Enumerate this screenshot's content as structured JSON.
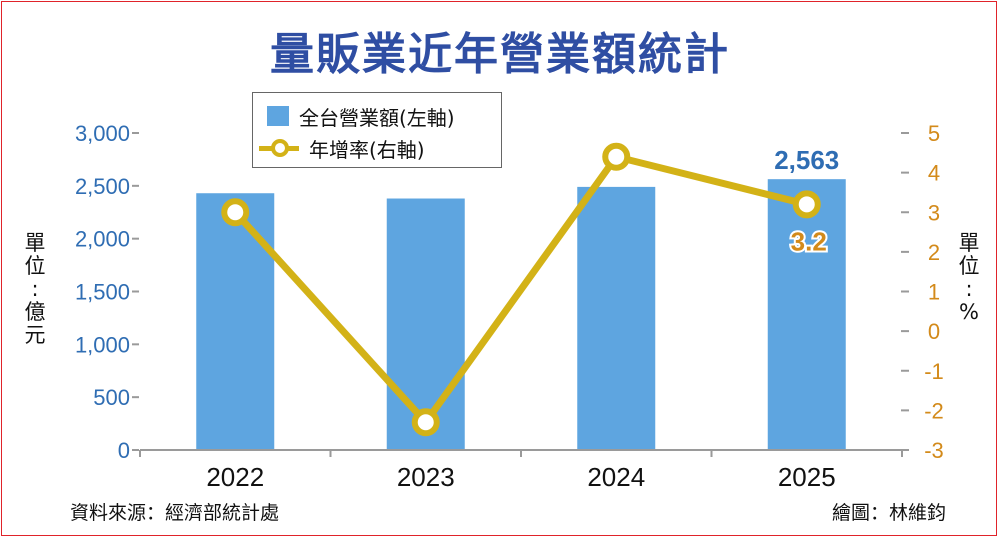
{
  "title": "量販業近年營業額統計",
  "legend": {
    "bar_label": "全台營業額(左軸)",
    "line_label": "年增率(右軸)"
  },
  "left_unit": "單位：億元",
  "right_unit": "單位：%",
  "footer": {
    "source": "資料來源：經濟部統計處",
    "credit": "繪圖：林維鈞"
  },
  "colors": {
    "bar": "#5ea5e0",
    "line": "#d3b217",
    "left_axis_text": "#2f6db3",
    "right_axis_text": "#d38a1a",
    "title": "#2f4ea3"
  },
  "chart_data": {
    "type": "bar",
    "categories": [
      "2022",
      "2023",
      "2024",
      "2025"
    ],
    "series": [
      {
        "name": "全台營業額(左軸)",
        "type": "bar",
        "axis": "left",
        "values": [
          2430,
          2380,
          2490,
          2563
        ]
      },
      {
        "name": "年增率(右軸)",
        "type": "line",
        "axis": "right",
        "values": [
          3.0,
          -2.3,
          4.4,
          3.2
        ]
      }
    ],
    "left_axis": {
      "ylim": [
        0,
        3000
      ],
      "ticks": [
        "0",
        "500",
        "1,000",
        "1,500",
        "2,000",
        "2,500",
        "3,000"
      ]
    },
    "right_axis": {
      "ylim": [
        -3,
        5
      ],
      "ticks": [
        "-3",
        "-2",
        "-1",
        "0",
        "1",
        "2",
        "3",
        "4",
        "5"
      ]
    },
    "data_labels": [
      {
        "category": "2025",
        "series": "全台營業額(左軸)",
        "text": "2,563"
      },
      {
        "category": "2025",
        "series": "年增率(右軸)",
        "text": "3.2"
      }
    ],
    "grid": false
  }
}
